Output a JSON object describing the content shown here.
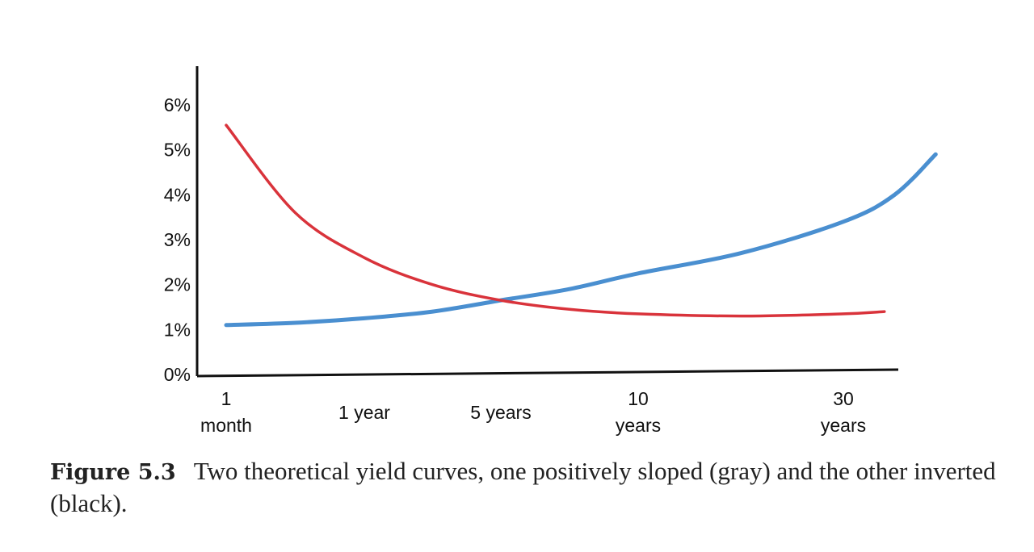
{
  "caption": {
    "label": "Figure 5.3",
    "text": "Two theoretical yield curves, one positively sloped (gray) and the other inverted (black)."
  },
  "chart_data": {
    "type": "line",
    "title": "",
    "xlabel": "",
    "ylabel": "",
    "ylim": [
      0,
      6
    ],
    "y_ticks": [
      "0%",
      "1%",
      "2%",
      "3%",
      "4%",
      "5%",
      "6%"
    ],
    "x_ticks": [
      {
        "lines": [
          "1",
          "month"
        ]
      },
      {
        "lines": [
          "1 year"
        ]
      },
      {
        "lines": [
          "5 years"
        ]
      },
      {
        "lines": [
          "10",
          "years"
        ]
      },
      {
        "lines": [
          "30",
          "years"
        ]
      }
    ],
    "grid": false,
    "series": [
      {
        "color": "#4a8fd0",
        "x": [
          0.0,
          0.5,
          1.0,
          1.5,
          2.0,
          2.5,
          3.0,
          3.5,
          4.0,
          4.25,
          4.45
        ],
        "y": [
          1.1,
          1.15,
          1.25,
          1.4,
          1.65,
          1.9,
          2.25,
          2.7,
          3.4,
          4.0,
          4.9
        ]
      },
      {
        "color": "#d9333b",
        "x": [
          0.0,
          0.5,
          1.0,
          1.5,
          2.0,
          2.5,
          3.0,
          3.5,
          4.0,
          4.2
        ],
        "y": [
          5.55,
          3.6,
          2.6,
          2.0,
          1.65,
          1.45,
          1.35,
          1.3,
          1.35,
          1.4
        ]
      }
    ]
  }
}
